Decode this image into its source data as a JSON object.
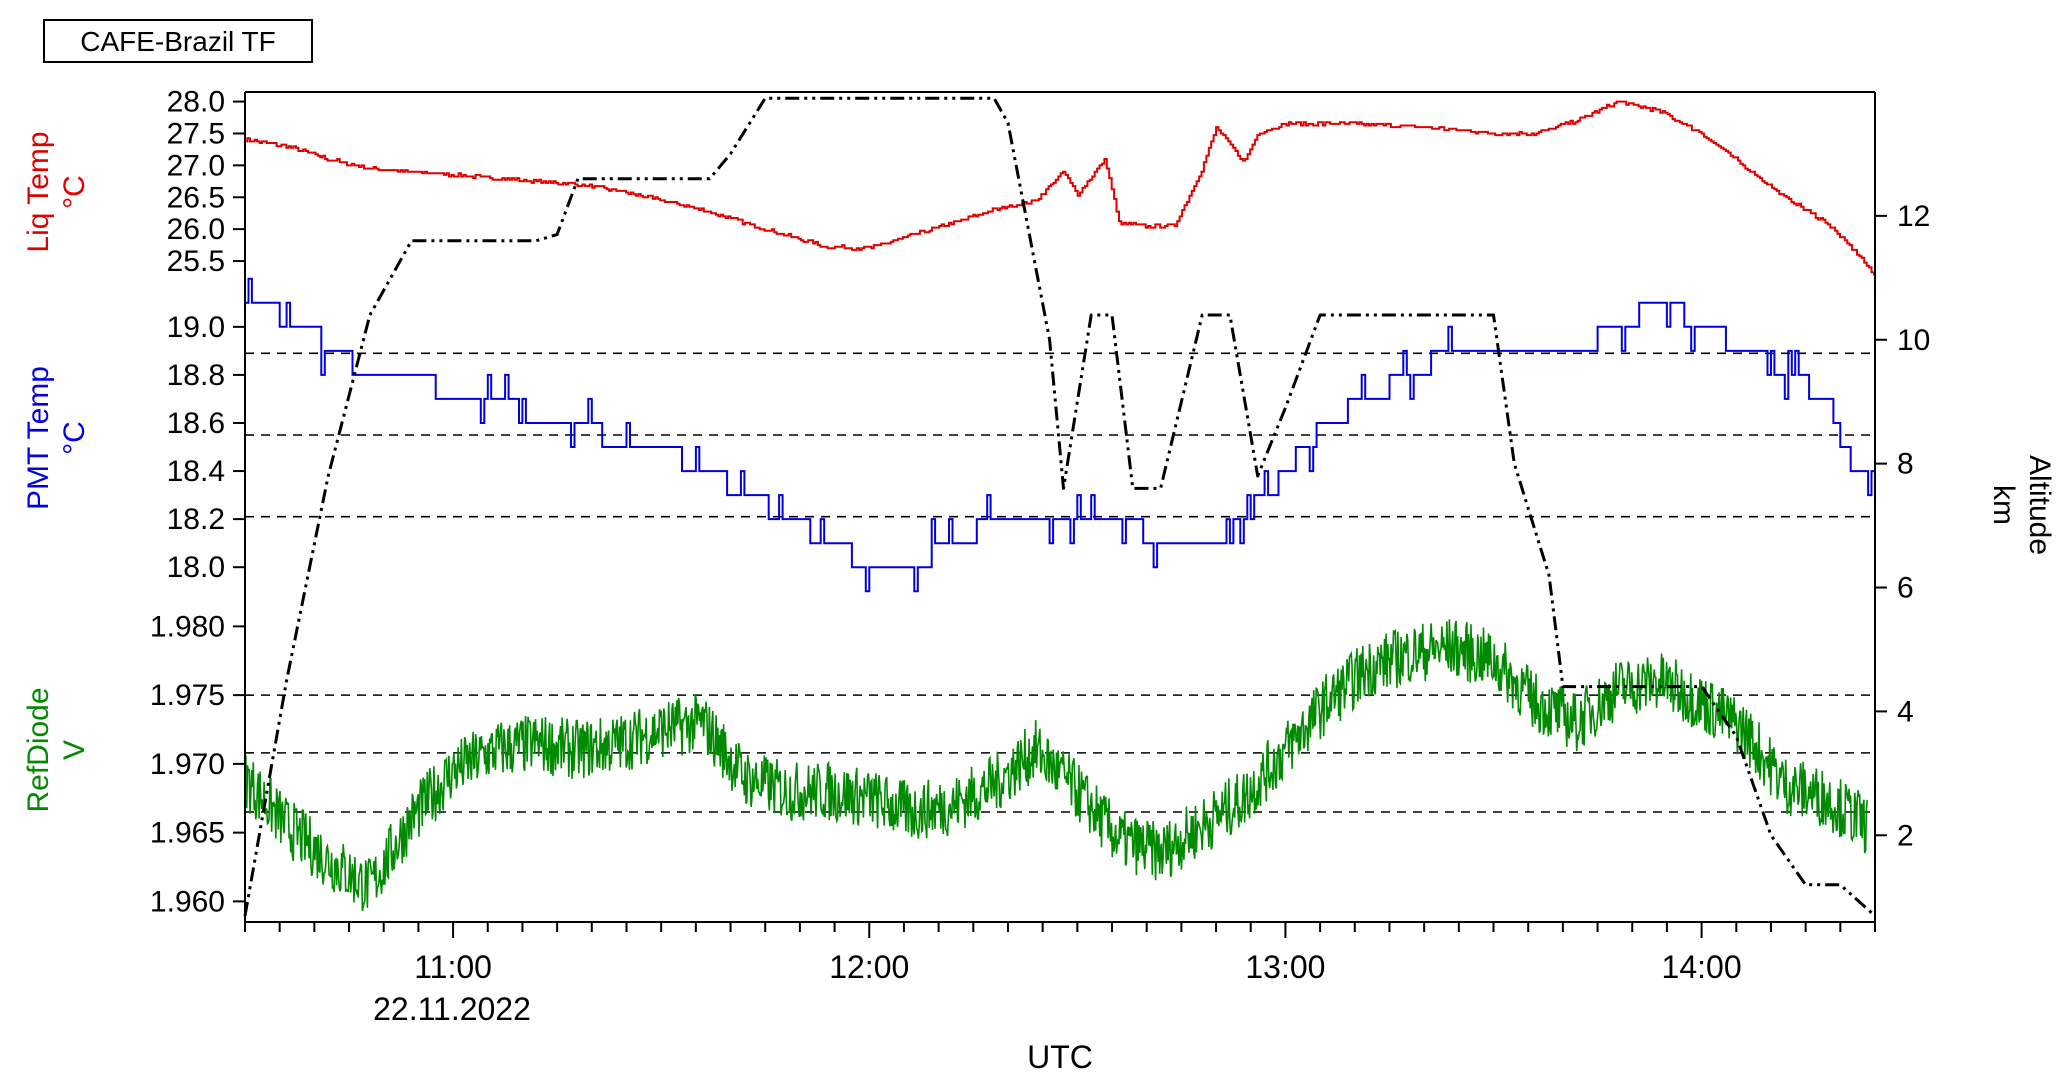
{
  "chart_data": {
    "type": "line",
    "title": "CAFE-Brazil TF",
    "xlabel": "UTC",
    "date_label": "22.11.2022",
    "x_ticks": [
      "11:00",
      "12:00",
      "13:00",
      "14:00"
    ],
    "x_range": [
      "10:30",
      "14:25"
    ],
    "grid": false,
    "right_axis": {
      "label": "Altitude",
      "unit": "km",
      "range": [
        0.6,
        14.0
      ],
      "ticks": [
        2,
        4,
        6,
        8,
        10,
        12
      ],
      "series": {
        "name": "Altitude",
        "color": "#000000",
        "style": "dash-dot-dot",
        "x": [
          "10:30",
          "10:36",
          "10:42",
          "10:48",
          "10:54",
          "11:00",
          "11:06",
          "11:12",
          "11:15",
          "11:18",
          "11:24",
          "11:30",
          "11:37",
          "11:40",
          "11:45",
          "12:00",
          "12:18",
          "12:20",
          "12:26",
          "12:28",
          "12:32",
          "12:35",
          "12:38",
          "12:42",
          "12:48",
          "12:52",
          "12:56",
          "13:00",
          "13:05",
          "13:12",
          "13:30",
          "13:33",
          "13:38",
          "13:40",
          "13:45",
          "13:50",
          "14:00",
          "14:05",
          "14:10",
          "14:15",
          "14:20",
          "14:25"
        ],
        "y": [
          0.7,
          4.5,
          7.8,
          10.4,
          11.6,
          11.6,
          11.6,
          11.6,
          11.7,
          12.6,
          12.6,
          12.6,
          12.6,
          13.0,
          13.9,
          13.9,
          13.9,
          13.5,
          10.0,
          7.6,
          10.4,
          10.4,
          7.6,
          7.6,
          10.4,
          10.4,
          7.8,
          8.9,
          10.4,
          10.4,
          10.4,
          8.0,
          6.2,
          4.4,
          4.4,
          4.4,
          4.4,
          3.6,
          2.0,
          1.2,
          1.2,
          0.7
        ]
      }
    },
    "panels": [
      {
        "ylabel": "Liq Temp",
        "unit": "°C",
        "color": "#e00000",
        "ylim": [
          25.25,
          28.15
        ],
        "ticks": [
          "25.5",
          "26.0",
          "26.5",
          "27.0",
          "27.5",
          "28.0"
        ],
        "dashed_lines": [],
        "series": {
          "name": "Liq Temp",
          "x": [
            "10:30",
            "10:36",
            "10:42",
            "10:48",
            "10:54",
            "11:00",
            "11:06",
            "11:12",
            "11:18",
            "11:24",
            "11:30",
            "11:36",
            "11:42",
            "11:48",
            "11:54",
            "12:00",
            "12:06",
            "12:12",
            "12:18",
            "12:24",
            "12:28",
            "12:30",
            "12:34",
            "12:36",
            "12:40",
            "12:44",
            "12:48",
            "12:50",
            "12:54",
            "12:56",
            "13:00",
            "13:10",
            "13:20",
            "13:30",
            "13:36",
            "13:42",
            "13:48",
            "13:54",
            "14:00",
            "14:06",
            "14:12",
            "14:18",
            "14:23",
            "14:25"
          ],
          "y": [
            27.4,
            27.3,
            27.1,
            26.95,
            26.9,
            26.85,
            26.8,
            26.75,
            26.7,
            26.6,
            26.45,
            26.3,
            26.1,
            25.9,
            25.72,
            25.7,
            25.9,
            26.1,
            26.3,
            26.45,
            26.9,
            26.55,
            27.1,
            26.1,
            26.05,
            26.05,
            26.95,
            27.6,
            27.05,
            27.5,
            27.65,
            27.65,
            27.6,
            27.5,
            27.5,
            27.7,
            28.0,
            27.85,
            27.5,
            27.0,
            26.5,
            26.1,
            25.55,
            25.25
          ]
        }
      },
      {
        "ylabel": "PMT Temp",
        "unit": "°C",
        "color": "#0000e0",
        "ylim": [
          17.98,
          19.12
        ],
        "ticks": [
          "18.0",
          "18.2",
          "18.4",
          "18.6",
          "18.8",
          "19.0"
        ],
        "dashed_lines": [
          18.21,
          18.55,
          18.89
        ],
        "series": {
          "name": "PMT Temp",
          "x": [
            "10:30",
            "10:34",
            "10:38",
            "10:42",
            "10:48",
            "10:54",
            "11:00",
            "11:06",
            "11:12",
            "11:18",
            "11:24",
            "11:30",
            "11:36",
            "11:42",
            "11:48",
            "11:54",
            "12:00",
            "12:06",
            "12:12",
            "12:18",
            "12:24",
            "12:30",
            "12:36",
            "12:42",
            "12:48",
            "12:54",
            "13:00",
            "13:06",
            "13:12",
            "13:18",
            "13:24",
            "13:30",
            "13:36",
            "13:42",
            "13:48",
            "13:54",
            "14:00",
            "14:06",
            "14:12",
            "14:18",
            "14:22",
            "14:25"
          ],
          "y": [
            19.1,
            19.1,
            19.0,
            18.9,
            18.8,
            18.8,
            18.7,
            18.7,
            18.6,
            18.6,
            18.5,
            18.5,
            18.4,
            18.3,
            18.2,
            18.1,
            18.0,
            18.0,
            18.1,
            18.2,
            18.2,
            18.2,
            18.2,
            18.1,
            18.1,
            18.2,
            18.4,
            18.6,
            18.7,
            18.8,
            18.9,
            18.9,
            18.9,
            18.9,
            19.0,
            19.1,
            19.0,
            18.9,
            18.8,
            18.7,
            18.4,
            18.4
          ]
        }
      },
      {
        "ylabel": "RefDiode",
        "unit": "V",
        "color": "#008a00",
        "ylim": [
          1.9585,
          1.9825
        ],
        "ticks": [
          "1.960",
          "1.965",
          "1.970",
          "1.975",
          "1.980"
        ],
        "dashed_lines": [
          1.9665,
          1.9708,
          1.975
        ],
        "series": {
          "name": "RefDiode",
          "x": [
            "10:30",
            "10:36",
            "10:42",
            "10:48",
            "10:54",
            "11:00",
            "11:06",
            "11:12",
            "11:18",
            "11:24",
            "11:30",
            "11:36",
            "11:42",
            "11:48",
            "11:54",
            "12:00",
            "12:06",
            "12:12",
            "12:18",
            "12:24",
            "12:30",
            "12:36",
            "12:42",
            "12:48",
            "12:54",
            "13:00",
            "13:06",
            "13:12",
            "13:18",
            "13:24",
            "13:30",
            "13:36",
            "13:42",
            "13:48",
            "13:54",
            "14:00",
            "14:06",
            "14:12",
            "14:18",
            "14:24"
          ],
          "y": [
            1.969,
            1.9655,
            1.963,
            1.961,
            1.966,
            1.9695,
            1.971,
            1.9715,
            1.971,
            1.9715,
            1.9725,
            1.973,
            1.969,
            1.968,
            1.968,
            1.9675,
            1.9665,
            1.967,
            1.9685,
            1.971,
            1.968,
            1.9645,
            1.9635,
            1.9655,
            1.9675,
            1.971,
            1.9745,
            1.977,
            1.978,
            1.9785,
            1.9775,
            1.9745,
            1.973,
            1.9755,
            1.976,
            1.9745,
            1.9725,
            1.9685,
            1.9675,
            1.9655
          ]
        }
      }
    ]
  }
}
